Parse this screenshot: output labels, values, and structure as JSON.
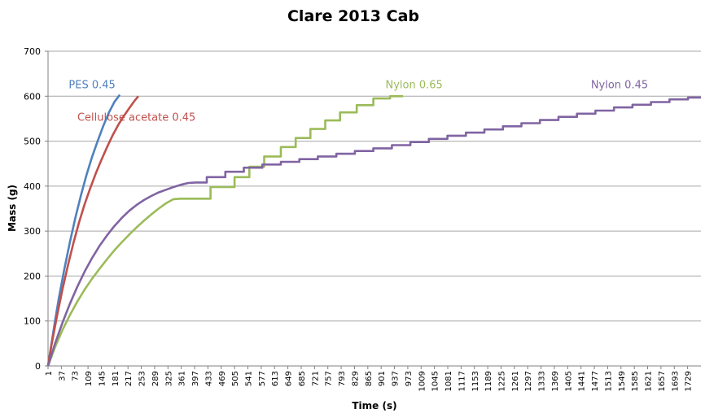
{
  "chart_data": {
    "type": "line",
    "title": "Clare 2013 Cab",
    "xlabel": "Time (s)",
    "ylabel": "Mass (g)",
    "xlim": [
      1,
      1765
    ],
    "ylim": [
      0,
      700
    ],
    "grid": true,
    "yticks": [
      0,
      100,
      200,
      300,
      400,
      500,
      600,
      700
    ],
    "xticks": [
      1,
      37,
      73,
      109,
      145,
      181,
      217,
      253,
      289,
      325,
      361,
      397,
      433,
      469,
      505,
      541,
      577,
      613,
      649,
      685,
      721,
      757,
      793,
      829,
      865,
      901,
      937,
      973,
      1009,
      1045,
      1081,
      1117,
      1153,
      1189,
      1225,
      1261,
      1297,
      1333,
      1369,
      1405,
      1441,
      1477,
      1513,
      1549,
      1585,
      1621,
      1657,
      1693,
      1729
    ],
    "series": [
      {
        "name": "PES 0.45",
        "color": "#4f81bd",
        "x": [
          1,
          10,
          20,
          30,
          45,
          60,
          75,
          90,
          105,
          120,
          135,
          150,
          165,
          181,
          195
        ],
        "y": [
          0,
          48,
          100,
          150,
          215,
          275,
          330,
          380,
          425,
          465,
          500,
          533,
          563,
          588,
          603
        ]
      },
      {
        "name": "Cellulose acetate 0.45",
        "color": "#c0504d",
        "x": [
          1,
          10,
          25,
          40,
          55,
          70,
          85,
          100,
          115,
          130,
          145,
          160,
          175,
          190,
          205,
          220,
          235,
          245
        ],
        "y": [
          0,
          45,
          110,
          170,
          225,
          275,
          320,
          360,
          395,
          428,
          458,
          486,
          512,
          535,
          555,
          573,
          590,
          600
        ]
      },
      {
        "name": "Nylon 0.65",
        "color": "#9bbb59",
        "x": [
          1,
          20,
          40,
          60,
          80,
          100,
          120,
          140,
          160,
          180,
          200,
          220,
          240,
          260,
          280,
          300,
          320,
          340,
          360,
          380,
          395,
          395,
          440,
          440,
          505,
          505,
          545,
          545,
          585,
          585,
          630,
          630,
          670,
          670,
          710,
          710,
          750,
          750,
          790,
          790,
          835,
          835,
          880,
          880,
          925,
          925,
          960,
          960
        ],
        "y": [
          0,
          42,
          80,
          113,
          143,
          170,
          194,
          216,
          237,
          257,
          275,
          292,
          308,
          323,
          337,
          350,
          362,
          371,
          372,
          372,
          372,
          372,
          372,
          398,
          398,
          420,
          420,
          443,
          443,
          466,
          466,
          487,
          487,
          507,
          507,
          527,
          527,
          546,
          546,
          564,
          564,
          580,
          580,
          595,
          595,
          600,
          600,
          600
        ]
      },
      {
        "name": "Nylon 0.45",
        "color": "#8064a2",
        "x": [
          1,
          20,
          40,
          60,
          80,
          100,
          120,
          140,
          160,
          180,
          200,
          220,
          240,
          260,
          280,
          300,
          320,
          340,
          360,
          380,
          400,
          430,
          430,
          480,
          480,
          530,
          530,
          580,
          580,
          630,
          630,
          680,
          680,
          730,
          730,
          780,
          780,
          830,
          830,
          880,
          880,
          930,
          930,
          980,
          980,
          1030,
          1030,
          1080,
          1080,
          1130,
          1130,
          1180,
          1180,
          1230,
          1230,
          1280,
          1280,
          1330,
          1330,
          1380,
          1380,
          1430,
          1430,
          1480,
          1480,
          1530,
          1530,
          1580,
          1580,
          1630,
          1630,
          1680,
          1680,
          1730,
          1730,
          1765
        ],
        "y": [
          0,
          50,
          96,
          138,
          176,
          210,
          240,
          267,
          290,
          311,
          329,
          345,
          358,
          369,
          378,
          386,
          392,
          398,
          403,
          407,
          408,
          408,
          420,
          420,
          432,
          432,
          441,
          441,
          448,
          448,
          454,
          454,
          460,
          460,
          466,
          466,
          472,
          472,
          478,
          478,
          484,
          484,
          491,
          491,
          498,
          498,
          505,
          505,
          512,
          512,
          519,
          519,
          526,
          526,
          533,
          533,
          540,
          540,
          547,
          547,
          554,
          554,
          561,
          561,
          568,
          568,
          575,
          575,
          581,
          581,
          587,
          587,
          593,
          593,
          597,
          597
        ]
      }
    ],
    "annotations": [
      {
        "text": "PES 0.45",
        "series": 0,
        "x": 120,
        "y": 618
      },
      {
        "text": "Cellulose acetate 0.45",
        "series": 1,
        "x": 240,
        "y": 545
      },
      {
        "text": "Nylon 0.65",
        "series": 2,
        "x": 990,
        "y": 618
      },
      {
        "text": "Nylon 0.45",
        "series": 3,
        "x": 1545,
        "y": 618
      }
    ]
  }
}
